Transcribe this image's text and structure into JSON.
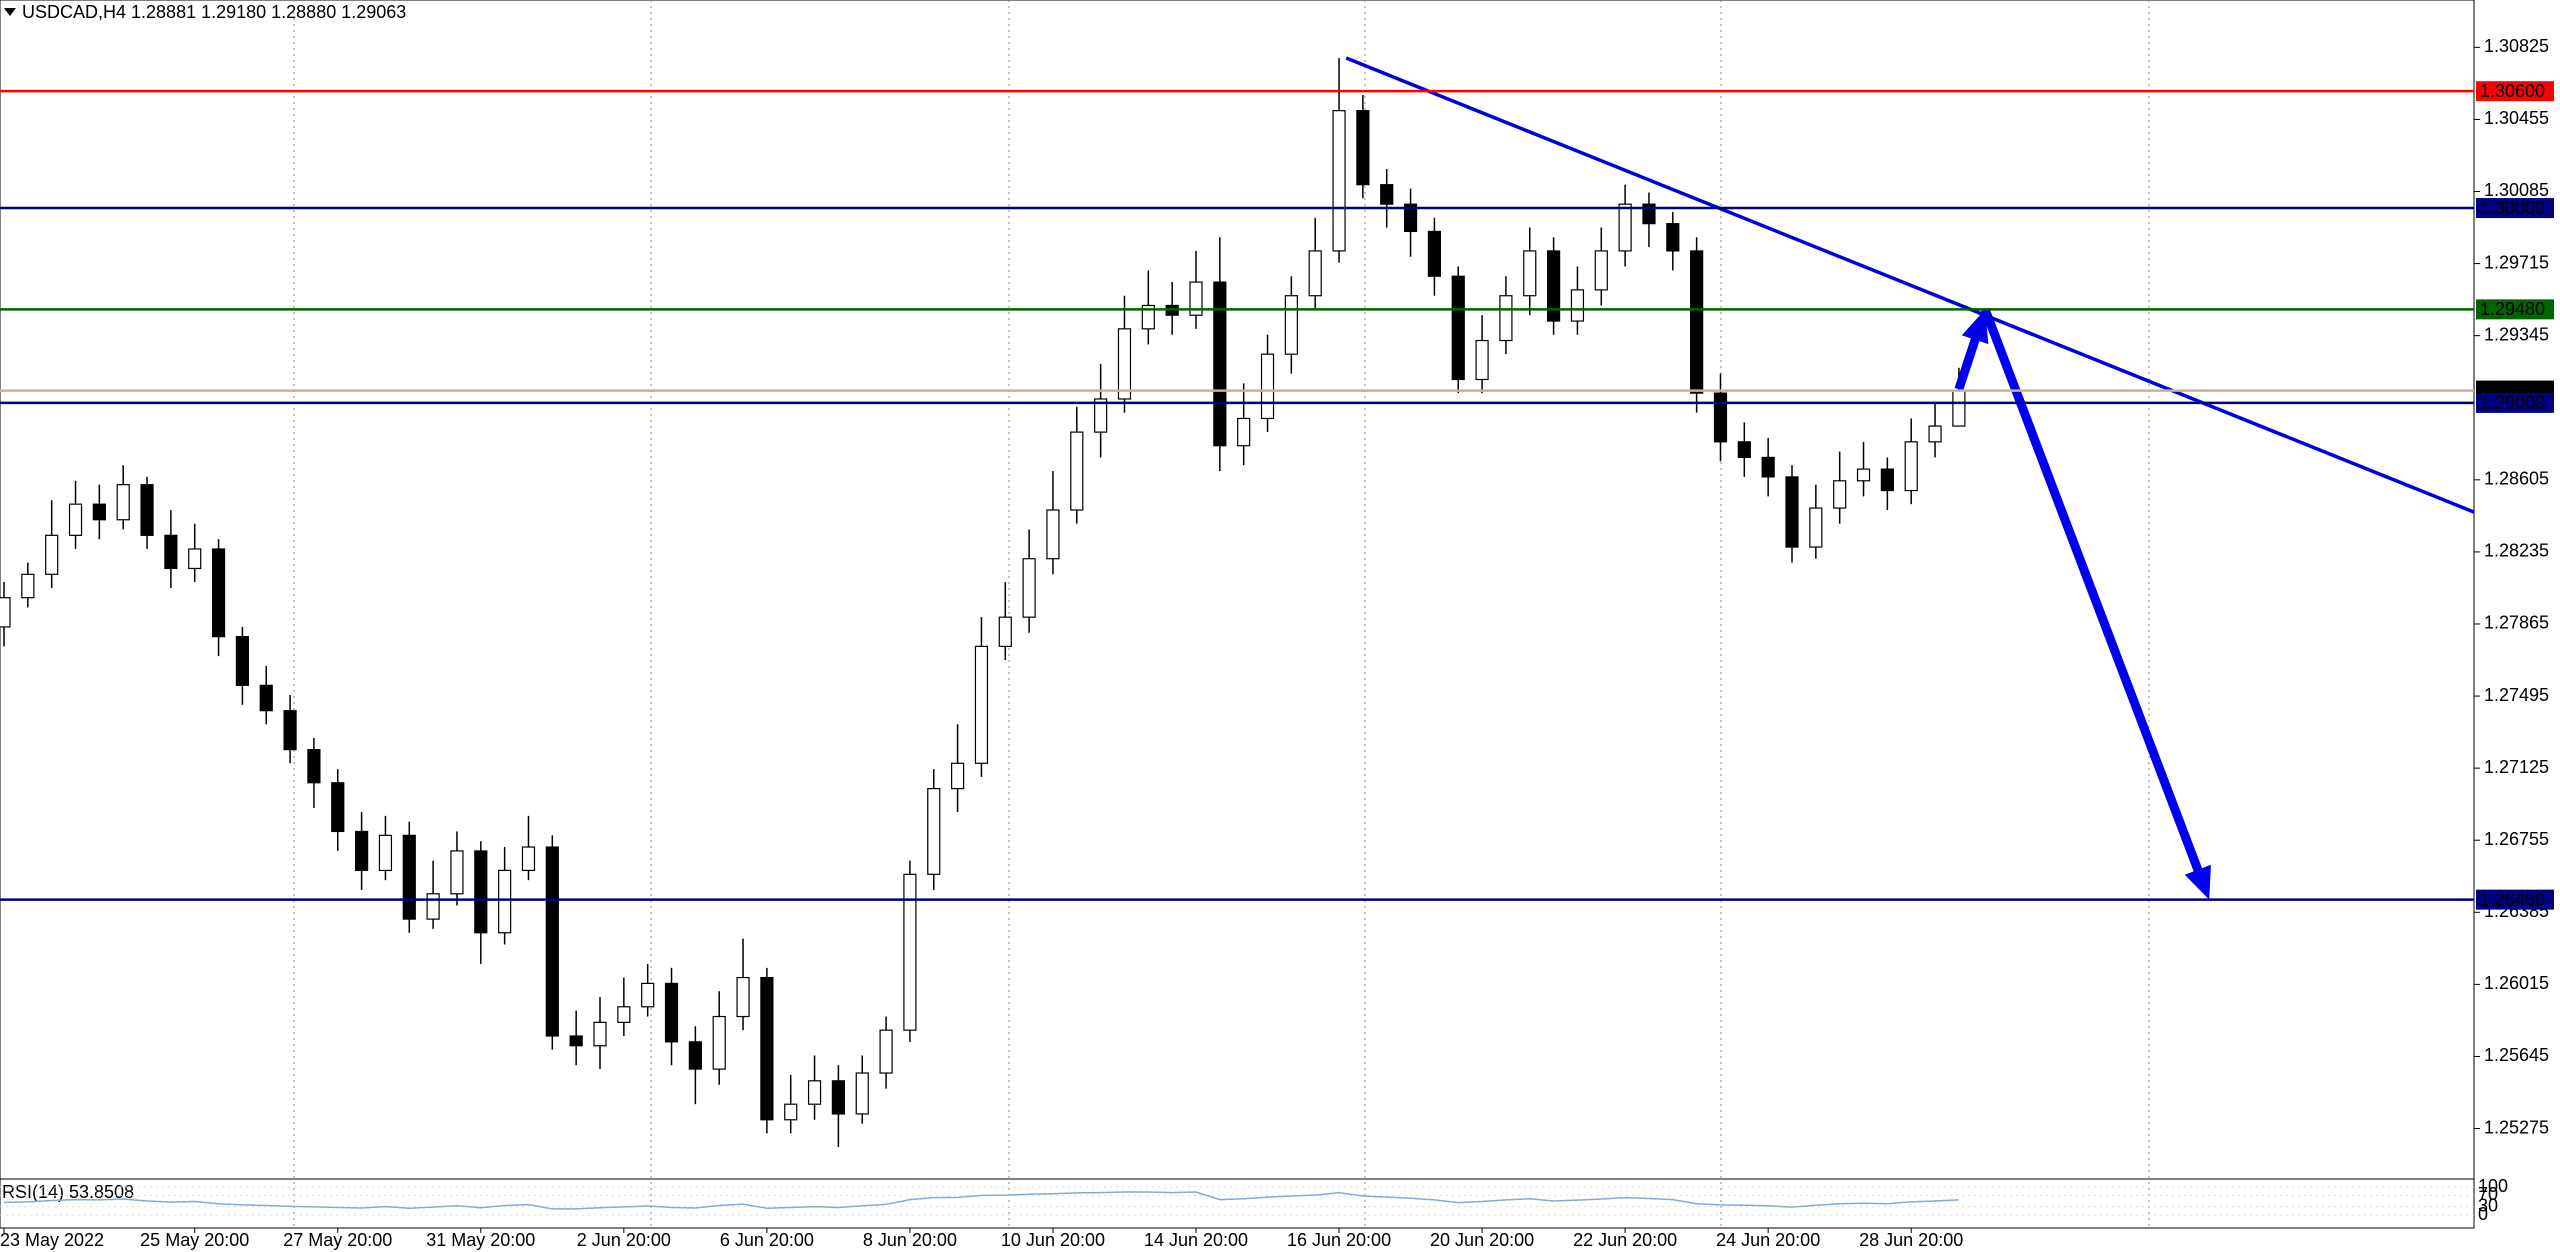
{
  "chart_data": {
    "type": "candlestick",
    "title": "USDCAD,H4  1.28881 1.29180 1.28880 1.29063",
    "up_color": "#ffffff",
    "down_color": "#000000",
    "categories": [
      "23 May 2022",
      null,
      null,
      null,
      null,
      null,
      null,
      null,
      "25 May 20:00",
      null,
      null,
      null,
      null,
      null,
      "27 May 20:00",
      null,
      null,
      null,
      null,
      null,
      "31 May 20:00",
      null,
      null,
      null,
      null,
      null,
      "2 Jun 20:00",
      null,
      null,
      null,
      null,
      null,
      "6 Jun 20:00",
      null,
      null,
      null,
      null,
      null,
      "8 Jun 20:00",
      null,
      null,
      null,
      null,
      null,
      "10 Jun 20:00",
      null,
      null,
      null,
      null,
      null,
      "14 Jun 20:00",
      null,
      null,
      null,
      null,
      null,
      "16 Jun 20:00",
      null,
      null,
      null,
      null,
      null,
      "20 Jun 20:00",
      null,
      null,
      null,
      null,
      null,
      "22 Jun 20:00",
      null,
      null,
      null,
      null,
      null,
      "24 Jun 20:00",
      null,
      null,
      null,
      null,
      null,
      "28 Jun 20:00",
      null,
      null
    ],
    "ohlc": [
      [
        1.2785,
        1.2808,
        1.2775,
        1.28
      ],
      [
        1.28,
        1.2818,
        1.2795,
        1.2812
      ],
      [
        1.2812,
        1.285,
        1.2805,
        1.2832
      ],
      [
        1.2832,
        1.286,
        1.2825,
        1.2848
      ],
      [
        1.2848,
        1.2858,
        1.283,
        1.284
      ],
      [
        1.284,
        1.2868,
        1.2835,
        1.2858
      ],
      [
        1.2858,
        1.2862,
        1.2825,
        1.2832
      ],
      [
        1.2832,
        1.2845,
        1.2805,
        1.2815
      ],
      [
        1.2815,
        1.2838,
        1.2808,
        1.2825
      ],
      [
        1.2825,
        1.283,
        1.277,
        1.278
      ],
      [
        1.278,
        1.2785,
        1.2745,
        1.2755
      ],
      [
        1.2755,
        1.2765,
        1.2735,
        1.2742
      ],
      [
        1.2742,
        1.275,
        1.2715,
        1.2722
      ],
      [
        1.2722,
        1.2728,
        1.2692,
        1.2705
      ],
      [
        1.2705,
        1.2712,
        1.267,
        1.268
      ],
      [
        1.268,
        1.269,
        1.265,
        1.266
      ],
      [
        1.266,
        1.2688,
        1.2655,
        1.2678
      ],
      [
        1.2678,
        1.2685,
        1.2628,
        1.2635
      ],
      [
        1.2635,
        1.2665,
        1.263,
        1.2648
      ],
      [
        1.2648,
        1.268,
        1.2642,
        1.267
      ],
      [
        1.267,
        1.2675,
        1.2612,
        1.2628
      ],
      [
        1.2628,
        1.2672,
        1.2622,
        1.266
      ],
      [
        1.266,
        1.2688,
        1.2655,
        1.2672
      ],
      [
        1.2672,
        1.2678,
        1.2568,
        1.2575
      ],
      [
        1.2575,
        1.2588,
        1.256,
        1.257
      ],
      [
        1.257,
        1.2595,
        1.2558,
        1.2582
      ],
      [
        1.2582,
        1.2605,
        1.2575,
        1.259
      ],
      [
        1.259,
        1.2612,
        1.2585,
        1.2602
      ],
      [
        1.2602,
        1.261,
        1.256,
        1.2572
      ],
      [
        1.2572,
        1.258,
        1.254,
        1.2558
      ],
      [
        1.2558,
        1.2598,
        1.255,
        1.2585
      ],
      [
        1.2585,
        1.2625,
        1.2578,
        1.2605
      ],
      [
        1.2605,
        1.261,
        1.2525,
        1.2532
      ],
      [
        1.2532,
        1.2555,
        1.2525,
        1.254
      ],
      [
        1.254,
        1.2565,
        1.2532,
        1.2552
      ],
      [
        1.2552,
        1.256,
        1.2518,
        1.2535
      ],
      [
        1.2535,
        1.2565,
        1.253,
        1.2556
      ],
      [
        1.2556,
        1.2585,
        1.2548,
        1.2578
      ],
      [
        1.2578,
        1.2665,
        1.2572,
        1.2658
      ],
      [
        1.2658,
        1.2712,
        1.265,
        1.2702
      ],
      [
        1.2702,
        1.2735,
        1.269,
        1.2715
      ],
      [
        1.2715,
        1.279,
        1.2708,
        1.2775
      ],
      [
        1.2775,
        1.2808,
        1.2768,
        1.279
      ],
      [
        1.279,
        1.2835,
        1.2782,
        1.282
      ],
      [
        1.282,
        1.2865,
        1.2812,
        1.2845
      ],
      [
        1.2845,
        1.2898,
        1.2838,
        1.2885
      ],
      [
        1.2885,
        1.292,
        1.2872,
        1.2902
      ],
      [
        1.2902,
        1.2955,
        1.2895,
        1.2938
      ],
      [
        1.2938,
        1.2968,
        1.293,
        1.295
      ],
      [
        1.295,
        1.2962,
        1.2935,
        1.2945
      ],
      [
        1.2945,
        1.2978,
        1.2938,
        1.2962
      ],
      [
        1.2962,
        1.2985,
        1.2865,
        1.2878
      ],
      [
        1.2878,
        1.291,
        1.2868,
        1.2892
      ],
      [
        1.2892,
        1.2935,
        1.2885,
        1.2925
      ],
      [
        1.2925,
        1.2965,
        1.2915,
        1.2955
      ],
      [
        1.2955,
        1.2995,
        1.2948,
        1.2978
      ],
      [
        1.2978,
        1.3077,
        1.2972,
        1.305
      ],
      [
        1.305,
        1.3058,
        1.3005,
        1.3012
      ],
      [
        1.3012,
        1.302,
        1.299,
        1.3002
      ],
      [
        1.3002,
        1.301,
        1.2975,
        1.2988
      ],
      [
        1.2988,
        1.2995,
        1.2955,
        1.2965
      ],
      [
        1.2965,
        1.297,
        1.2905,
        1.2912
      ],
      [
        1.2912,
        1.2945,
        1.2905,
        1.2932
      ],
      [
        1.2932,
        1.2965,
        1.2925,
        1.2955
      ],
      [
        1.2955,
        1.299,
        1.2945,
        1.2978
      ],
      [
        1.2978,
        1.2985,
        1.2935,
        1.2942
      ],
      [
        1.2942,
        1.297,
        1.2935,
        1.2958
      ],
      [
        1.2958,
        1.299,
        1.295,
        1.2978
      ],
      [
        1.2978,
        1.3012,
        1.297,
        1.3002
      ],
      [
        1.3002,
        1.3008,
        1.298,
        1.2992
      ],
      [
        1.2992,
        1.2998,
        1.2968,
        1.2978
      ],
      [
        1.2978,
        1.2985,
        1.2895,
        1.2905
      ],
      [
        1.2905,
        1.2915,
        1.287,
        1.288
      ],
      [
        1.288,
        1.289,
        1.2862,
        1.2872
      ],
      [
        1.2872,
        1.2882,
        1.2852,
        1.2862
      ],
      [
        1.2862,
        1.2868,
        1.2818,
        1.2826
      ],
      [
        1.2826,
        1.2858,
        1.282,
        1.2846
      ],
      [
        1.2846,
        1.2875,
        1.2838,
        1.286
      ],
      [
        1.286,
        1.288,
        1.2852,
        1.2866
      ],
      [
        1.2866,
        1.2872,
        1.2845,
        1.2855
      ],
      [
        1.2855,
        1.2892,
        1.2848,
        1.288
      ],
      [
        1.288,
        1.29,
        1.2872,
        1.28881
      ],
      [
        1.28881,
        1.2918,
        1.2888,
        1.29063
      ]
    ],
    "ylim": [
      1.25016,
      1.31068
    ],
    "yticks": [
      1.30825,
      1.30455,
      1.30085,
      1.29715,
      1.29345,
      1.28605,
      1.28235,
      1.27865,
      1.27495,
      1.27125,
      1.26755,
      1.26385,
      1.26015,
      1.25645,
      1.25275
    ],
    "levels": [
      {
        "value": 1.306,
        "label": "1.30600",
        "color": "#ff0000"
      },
      {
        "value": 1.3,
        "label": "1.30000",
        "color": "#000080"
      },
      {
        "value": 1.2948,
        "label": "1.29480",
        "color": "#006400"
      },
      {
        "value": 1.29063,
        "label": "1.29063",
        "color": "#000000",
        "line_color": "#c8b09a"
      },
      {
        "value": 1.29,
        "label": "1.29000",
        "color": "#000080"
      },
      {
        "value": 1.2645,
        "label": "1.26450",
        "color": "#000080"
      }
    ],
    "trendline": {
      "color": "#0000dd",
      "start": {
        "index": 56.3,
        "price": 1.3077
      },
      "end": {
        "index": 104,
        "price": 1.2842
      }
    },
    "arrow": {
      "color": "#0000ee",
      "points": [
        {
          "index": 82,
          "price": 1.2907
        },
        {
          "index": 83.1,
          "price": 1.2948
        },
        {
          "index": 92.5,
          "price": 1.2645
        }
      ]
    },
    "rsi": {
      "label": "RSI(14) 53.8508",
      "color": "#87a9d6",
      "ylim": [
        0,
        100
      ],
      "yticks": [
        100,
        70,
        30,
        0
      ],
      "values": [
        45,
        47,
        52,
        55,
        54,
        57,
        50,
        46,
        48,
        40,
        36,
        34,
        31,
        29,
        27,
        25,
        30,
        24,
        28,
        33,
        26,
        34,
        37,
        22,
        22,
        26,
        29,
        32,
        27,
        25,
        34,
        39,
        24,
        27,
        30,
        27,
        33,
        38,
        55,
        62,
        63,
        70,
        71,
        74,
        76,
        79,
        80,
        82,
        82,
        80,
        82,
        55,
        58,
        64,
        68,
        71,
        80,
        68,
        64,
        60,
        54,
        44,
        48,
        54,
        58,
        50,
        53,
        57,
        62,
        59,
        55,
        40,
        36,
        35,
        33,
        28,
        35,
        40,
        42,
        40,
        47,
        50,
        53.8508
      ]
    }
  }
}
